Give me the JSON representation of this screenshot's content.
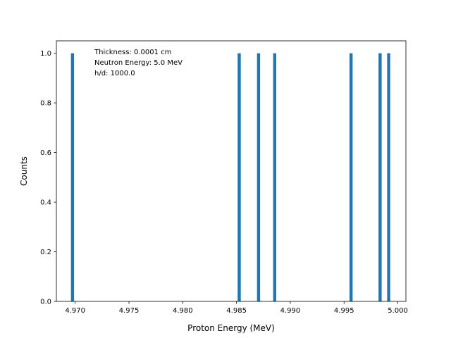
{
  "chart_data": {
    "type": "bar",
    "xlabel": "Proton Energy (MeV)",
    "ylabel": "Counts",
    "xlim": [
      4.96825,
      5.00075
    ],
    "ylim": [
      0.0,
      1.05
    ],
    "bar_width": 0.00029,
    "x": [
      4.96975,
      4.98525,
      4.98705,
      4.98855,
      4.99565,
      4.99835,
      4.99915
    ],
    "values": [
      1.0,
      1.0,
      1.0,
      1.0,
      1.0,
      1.0,
      1.0
    ],
    "xticks": [
      4.97,
      4.975,
      4.98,
      4.985,
      4.99,
      4.995,
      5.0
    ],
    "xtick_labels": [
      "4.970",
      "4.975",
      "4.980",
      "4.985",
      "4.990",
      "4.995",
      "5.000"
    ],
    "yticks": [
      0.0,
      0.2,
      0.4,
      0.6,
      0.8,
      1.0
    ],
    "ytick_labels": [
      "0.0",
      "0.2",
      "0.4",
      "0.6",
      "0.8",
      "1.0"
    ],
    "annotation_lines": [
      "Thickness: 0.0001 cm",
      "Neutron Energy: 5.0 MeV",
      "h/d: 1000.0"
    ],
    "grid": false,
    "bar_color": "#1f77b4"
  }
}
